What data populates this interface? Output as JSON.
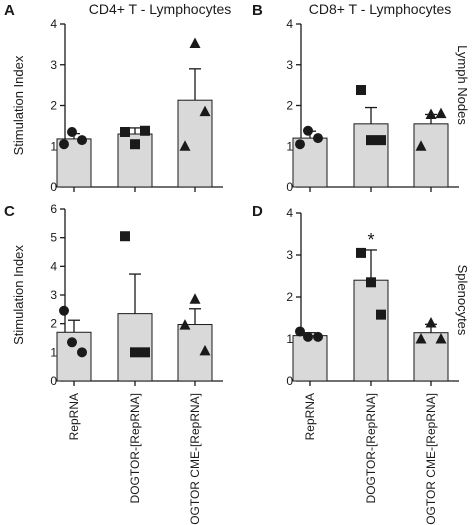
{
  "figure": {
    "row_labels": [
      "Lymph Nodes",
      "Splenocytes"
    ],
    "bar_fill": "#d9d9d9",
    "stroke": "#1a1a1a"
  },
  "chart_data": [
    {
      "type": "bar",
      "panel": "A",
      "title": "CD4+ T - Lymphocytes",
      "ylabel": "Stimulation Index",
      "ylim": [
        0,
        4
      ],
      "yticks": [
        0,
        1,
        2,
        3,
        4
      ],
      "categories": [
        "RepRNA",
        "DOGTOR-[RepRNA]",
        "DOGTOR CME-[RepRNA]"
      ],
      "show_category_labels": false,
      "values": [
        1.18,
        1.3,
        2.13
      ],
      "errors": [
        0.13,
        0.15,
        0.77
      ],
      "points": [
        [
          1.05,
          1.35,
          1.15
        ],
        [
          1.35,
          1.05,
          1.38
        ],
        [
          3.52,
          1.0,
          1.85
        ]
      ],
      "markers": [
        "circle",
        "square",
        "triangle"
      ],
      "significance": [
        "",
        "",
        ""
      ]
    },
    {
      "type": "bar",
      "panel": "B",
      "title": "CD8+ T - Lymphocytes",
      "ylabel": "",
      "ylim": [
        0,
        4
      ],
      "yticks": [
        0,
        1,
        2,
        3,
        4
      ],
      "categories": [
        "RepRNA",
        "DOGTOR-[RepRNA]",
        "DOGTOR CME-[RepRNA]"
      ],
      "show_category_labels": false,
      "values": [
        1.2,
        1.55,
        1.55
      ],
      "errors": [
        0.17,
        0.4,
        0.23
      ],
      "points": [
        [
          1.05,
          1.38,
          1.2
        ],
        [
          2.38,
          1.15,
          1.15
        ],
        [
          1.78,
          1.0,
          1.8
        ]
      ],
      "markers": [
        "circle",
        "square",
        "triangle"
      ],
      "significance": [
        "",
        "",
        ""
      ]
    },
    {
      "type": "bar",
      "panel": "C",
      "title": "",
      "ylabel": "Stimulation Index",
      "ylim": [
        0,
        6
      ],
      "yticks": [
        0,
        1,
        2,
        3,
        4,
        5,
        6
      ],
      "categories": [
        "RepRNA",
        "DOGTOR-[RepRNA]",
        "DOGTOR CME-[RepRNA]"
      ],
      "show_category_labels": true,
      "values": [
        1.7,
        2.35,
        1.97
      ],
      "errors": [
        0.42,
        1.38,
        0.55
      ],
      "points": [
        [
          2.45,
          1.35,
          1.0
        ],
        [
          5.05,
          1.0,
          1.0
        ],
        [
          2.85,
          1.95,
          1.05
        ]
      ],
      "markers": [
        "circle",
        "square",
        "triangle"
      ],
      "significance": [
        "",
        "",
        ""
      ]
    },
    {
      "type": "bar",
      "panel": "D",
      "title": "",
      "ylabel": "",
      "ylim": [
        0,
        4
      ],
      "yticks": [
        0,
        1,
        2,
        3,
        4
      ],
      "categories": [
        "RepRNA",
        "DOGTOR-[RepRNA]",
        "DOGTOR CME-[RepRNA]"
      ],
      "show_category_labels": true,
      "values": [
        1.08,
        2.4,
        1.15
      ],
      "errors": [
        0.07,
        0.72,
        0.2
      ],
      "points": [
        [
          1.18,
          1.05,
          1.05
        ],
        [
          3.05,
          2.35,
          1.58
        ],
        [
          1.38,
          1.0,
          1.0
        ]
      ],
      "markers": [
        "circle",
        "square",
        "triangle"
      ],
      "significance": [
        "",
        "*",
        ""
      ]
    }
  ]
}
